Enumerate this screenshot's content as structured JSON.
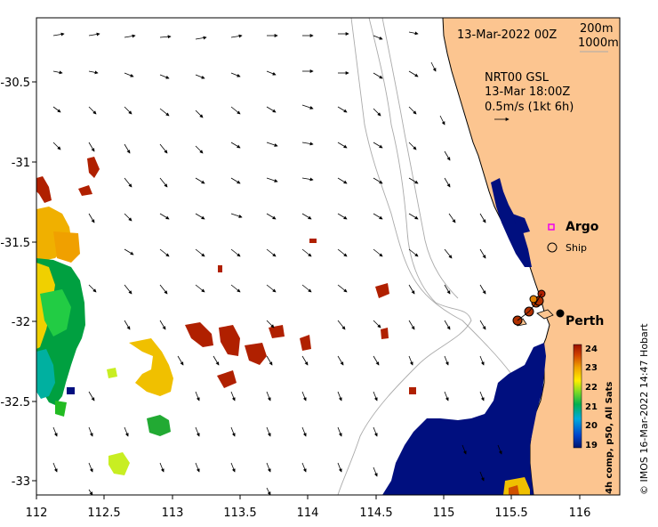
{
  "map": {
    "date_label": "13-Mar-2022 00Z",
    "depth_label_1": "200m",
    "depth_label_2": "1000m",
    "current_product": "NRT00 GSL",
    "current_time": "13-Mar 18:00Z",
    "current_scale": "0.5m/s (1kt 6h)",
    "x_ticks": [
      "112",
      "112.5",
      "113",
      "113.5",
      "114",
      "114.5",
      "115",
      "115.5",
      "116"
    ],
    "y_ticks": [
      "-30.5",
      "-31",
      "-31.5",
      "-32",
      "-32.5",
      "-33"
    ],
    "legend_argo": "Argo",
    "legend_ship": "Ship",
    "city_label": "Perth",
    "colorbar_title": "4h comp, p50, All Sats",
    "colorbar_ticks": [
      "24",
      "23",
      "22",
      "21",
      "20",
      "19"
    ],
    "credit": "© IMOS 16-Mar-2022 14:47 Hobart"
  },
  "colors": {
    "land": "#fcc590",
    "sst_cold": "#000f7f",
    "sst_warm": "#aa2200",
    "argo": "#ee00ee"
  }
}
